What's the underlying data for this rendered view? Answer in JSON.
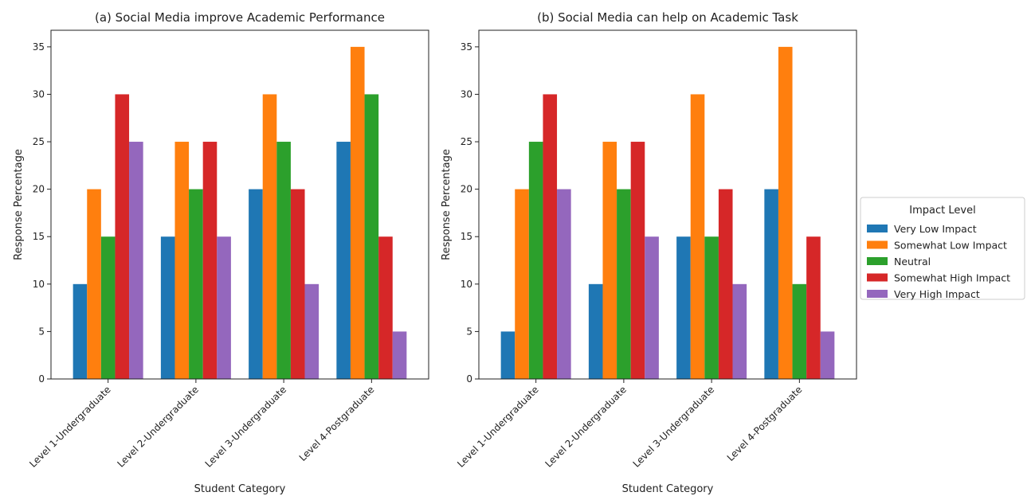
{
  "legend": {
    "title": "Impact Level",
    "placement": "right"
  },
  "chart_data": [
    {
      "type": "bar",
      "title": "(a) Social Media improve Academic Performance",
      "xlabel": "Student Category",
      "ylabel": "Response Percentage",
      "ylim": [
        0,
        36.75
      ],
      "yticks": [
        0,
        5,
        10,
        15,
        20,
        25,
        30,
        35
      ],
      "grid": false,
      "categories": [
        "Level 1-Undergraduate",
        "Level 2-Undergraduate",
        "Level 3-Undergraduate",
        "Level 4-Postgraduate"
      ],
      "series": [
        {
          "name": "Very Low Impact",
          "color": "#1f77b4",
          "values": [
            10,
            15,
            20,
            25
          ]
        },
        {
          "name": "Somewhat Low Impact",
          "color": "#ff7f0e",
          "values": [
            20,
            25,
            30,
            35
          ]
        },
        {
          "name": "Neutral",
          "color": "#2ca02c",
          "values": [
            15,
            20,
            25,
            30
          ]
        },
        {
          "name": "Somewhat High Impact",
          "color": "#d62728",
          "values": [
            30,
            25,
            20,
            15
          ]
        },
        {
          "name": "Very High Impact",
          "color": "#9467bd",
          "values": [
            25,
            15,
            10,
            5
          ]
        }
      ]
    },
    {
      "type": "bar",
      "title": "(b) Social Media can help on Academic Task",
      "xlabel": "Student Category",
      "ylabel": "Response Percentage",
      "ylim": [
        0,
        36.75
      ],
      "yticks": [
        0,
        5,
        10,
        15,
        20,
        25,
        30,
        35
      ],
      "grid": false,
      "categories": [
        "Level 1-Undergraduate",
        "Level 2-Undergraduate",
        "Level 3-Undergraduate",
        "Level 4-Postgraduate"
      ],
      "series": [
        {
          "name": "Very Low Impact",
          "color": "#1f77b4",
          "values": [
            5,
            10,
            15,
            20
          ]
        },
        {
          "name": "Somewhat Low Impact",
          "color": "#ff7f0e",
          "values": [
            20,
            25,
            30,
            35
          ]
        },
        {
          "name": "Neutral",
          "color": "#2ca02c",
          "values": [
            25,
            20,
            15,
            10
          ]
        },
        {
          "name": "Somewhat High Impact",
          "color": "#d62728",
          "values": [
            30,
            25,
            20,
            15
          ]
        },
        {
          "name": "Very High Impact",
          "color": "#9467bd",
          "values": [
            20,
            15,
            10,
            5
          ]
        }
      ]
    }
  ]
}
